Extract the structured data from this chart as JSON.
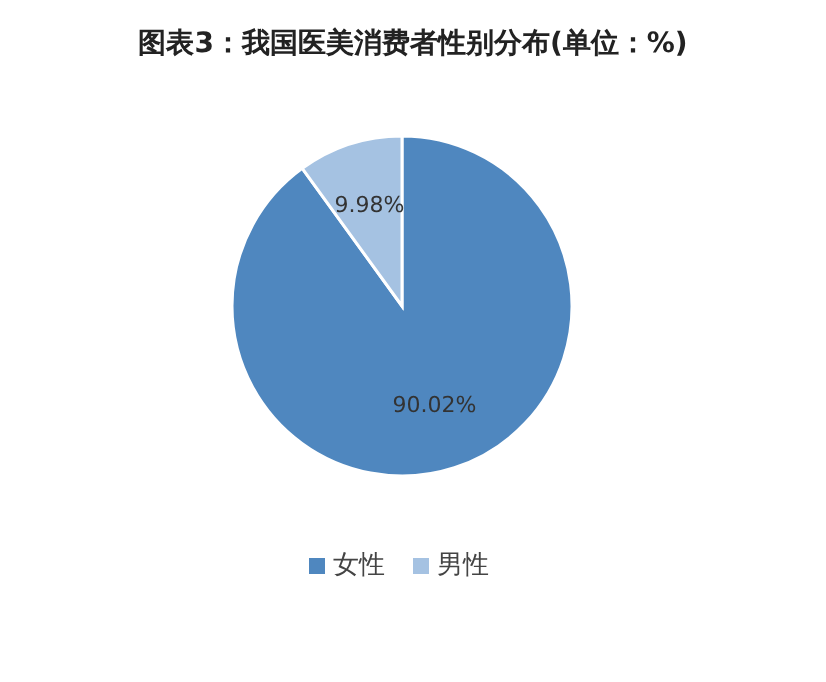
{
  "chart_data": {
    "type": "pie",
    "title": "图表3：我国医美消费者性别分布(单位：%)",
    "categories": [
      "女性",
      "男性"
    ],
    "values": [
      90.02,
      9.98
    ],
    "colors": [
      "#4f87bf",
      "#a5c2e2"
    ],
    "value_labels": [
      "90.02%",
      "9.98%"
    ],
    "legend": "bottom"
  }
}
